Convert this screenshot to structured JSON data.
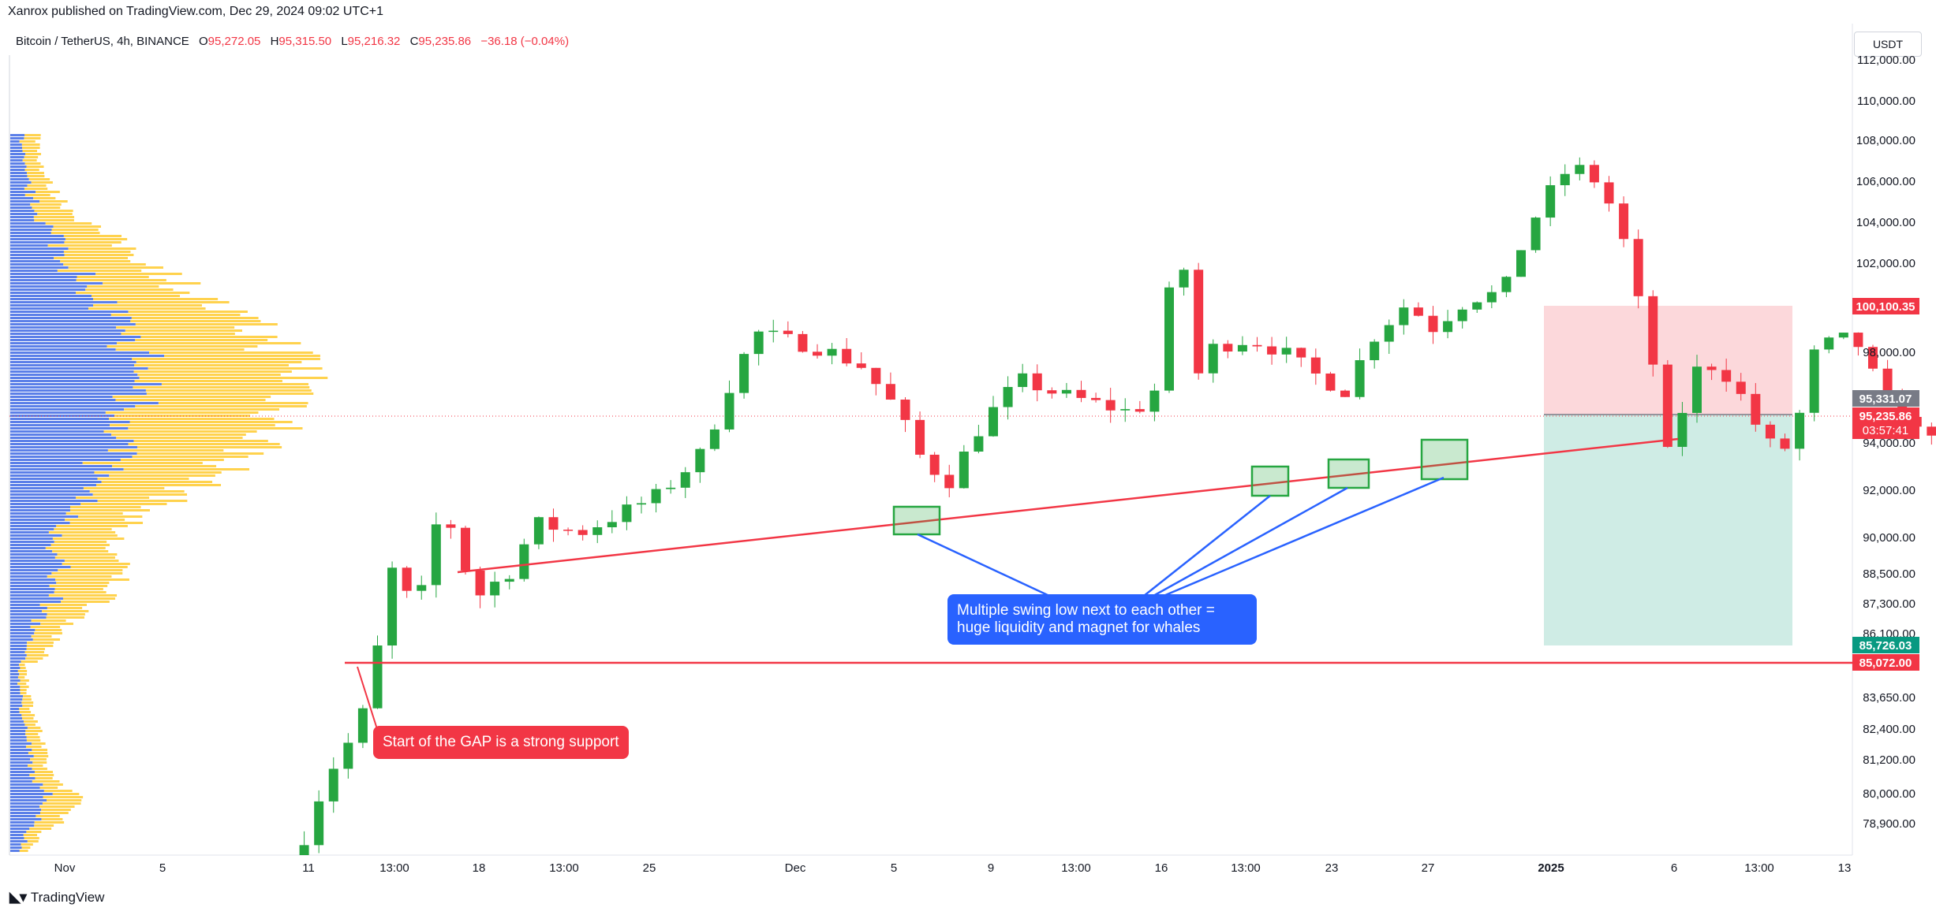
{
  "header": {
    "publish_line": "Xanrox published on TradingView.com, Dec 29, 2024 09:02 UTC+1",
    "symbol": "Bitcoin / TetherUS, 4h, BINANCE",
    "ohlc": {
      "o_label": "O",
      "o": "95,272.05",
      "h_label": "H",
      "h": "95,315.50",
      "l_label": "L",
      "l": "95,216.32",
      "c_label": "C",
      "c": "95,235.86"
    },
    "change": "−36.18 (−0.04%)",
    "currency": "USDT"
  },
  "footer": {
    "brand": "TradingView",
    "logo_icon": "tradingview-logo-icon"
  },
  "colors": {
    "up": "#26a641",
    "down": "#f23645",
    "accent_blue": "#2962ff",
    "profile_blue": "#5b7fe8",
    "profile_yellow": "#ffd24d"
  },
  "annotations": {
    "gap_note": "Start of the GAP is a strong support",
    "swing_note": "Multiple swing low next to each other = huge liquidity and magnet for whales"
  },
  "price_tags": {
    "target": "100,100.35",
    "ref": "95,331.07",
    "last": "95,235.86",
    "countdown": "03:57:41",
    "tp": "85,726.03",
    "support": "85,072.00"
  },
  "chart_data": {
    "type": "candlestick",
    "timeframe": "4h",
    "y_axis": {
      "ticks": [
        "112,000.00",
        "110,000.00",
        "108,000.00",
        "106,000.00",
        "104,000.00",
        "102,000.00",
        "98,000.00",
        "94,000.00",
        "92,000.00",
        "90,000.00",
        "88,500.00",
        "87,300.00",
        "86,100.00",
        "83,650.00",
        "82,400.00",
        "81,200.00",
        "80,000.00",
        "78,900.00"
      ]
    },
    "x_axis": {
      "ticks": [
        {
          "label": "Nov",
          "bold": false
        },
        {
          "label": "5",
          "bold": false
        },
        {
          "label": "11",
          "bold": false
        },
        {
          "label": "13:00",
          "bold": false
        },
        {
          "label": "18",
          "bold": false
        },
        {
          "label": "13:00",
          "bold": false
        },
        {
          "label": "25",
          "bold": false
        },
        {
          "label": "Dec",
          "bold": false
        },
        {
          "label": "5",
          "bold": false
        },
        {
          "label": "9",
          "bold": false
        },
        {
          "label": "13:00",
          "bold": false
        },
        {
          "label": "16",
          "bold": false
        },
        {
          "label": "13:00",
          "bold": false
        },
        {
          "label": "23",
          "bold": false
        },
        {
          "label": "27",
          "bold": false
        },
        {
          "label": "2025",
          "bold": true
        },
        {
          "label": "6",
          "bold": false
        },
        {
          "label": "13:00",
          "bold": false
        },
        {
          "label": "13",
          "bold": false
        }
      ]
    },
    "price_path": [
      [
        0,
        77000
      ],
      [
        0.4,
        80500
      ],
      [
        0.7,
        82000
      ],
      [
        0.9,
        83500
      ],
      [
        1.0,
        85500
      ],
      [
        1.05,
        88000
      ],
      [
        1.2,
        88800
      ],
      [
        1.4,
        87000
      ],
      [
        1.6,
        88500
      ],
      [
        1.7,
        91500
      ],
      [
        1.9,
        90000
      ],
      [
        2.1,
        87500
      ],
      [
        2.5,
        88600
      ],
      [
        2.8,
        90600
      ],
      [
        3.3,
        90200
      ],
      [
        3.7,
        90900
      ],
      [
        4.2,
        91800
      ],
      [
        4.7,
        93600
      ],
      [
        5.0,
        96500
      ],
      [
        5.3,
        98900
      ],
      [
        5.7,
        98500
      ],
      [
        6.1,
        98100
      ],
      [
        6.5,
        97400
      ],
      [
        6.9,
        95500
      ],
      [
        7.2,
        93200
      ],
      [
        7.5,
        92400
      ],
      [
        7.9,
        95000
      ],
      [
        8.3,
        96800
      ],
      [
        8.7,
        96200
      ],
      [
        9.2,
        95700
      ],
      [
        9.6,
        95300
      ],
      [
        9.9,
        96600
      ],
      [
        10.05,
        102600
      ],
      [
        10.2,
        101500
      ],
      [
        10.35,
        96500
      ],
      [
        10.5,
        98200
      ],
      [
        10.9,
        98600
      ],
      [
        11.3,
        98000
      ],
      [
        11.7,
        96900
      ],
      [
        12.0,
        96300
      ],
      [
        12.3,
        98600
      ],
      [
        12.7,
        100200
      ],
      [
        13.0,
        99100
      ],
      [
        13.4,
        100400
      ],
      [
        13.8,
        100700
      ],
      [
        14.1,
        103800
      ],
      [
        14.4,
        106000
      ],
      [
        14.6,
        106800
      ],
      [
        14.85,
        106000
      ],
      [
        15.1,
        104200
      ],
      [
        15.3,
        100800
      ],
      [
        15.5,
        97500
      ],
      [
        15.7,
        92700
      ],
      [
        15.9,
        96800
      ],
      [
        16.1,
        97600
      ],
      [
        16.4,
        96800
      ],
      [
        16.7,
        94600
      ],
      [
        16.9,
        93600
      ],
      [
        17.1,
        94000
      ],
      [
        17.3,
        97800
      ],
      [
        17.6,
        98700
      ],
      [
        17.9,
        98200
      ],
      [
        18.1,
        95800
      ],
      [
        18.3,
        95600
      ],
      [
        18.5,
        94500
      ],
      [
        18.7,
        94600
      ],
      [
        18.9,
        95236
      ]
    ],
    "drawings": {
      "trendline_support": "rising trendline across swing lows",
      "horizontal_support": 85072,
      "short_position": {
        "entry": 95331.07,
        "stop": 100100.35,
        "target": 85726.03
      },
      "swing_low_boxes": 4
    }
  }
}
